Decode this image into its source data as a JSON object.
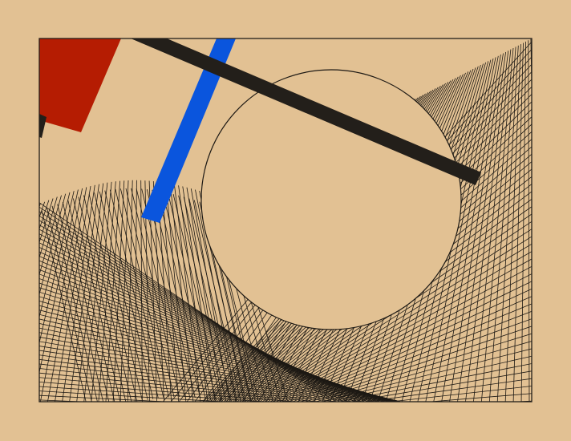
{
  "artwork": {
    "style": "constructivist geometric composition with string-art mesh",
    "colors": {
      "background": "#e2c193",
      "ink": "#231f1a",
      "red": "#b51c02",
      "blue": "#0a55dd",
      "line": "#1d1914"
    },
    "elements": [
      "frame",
      "mesh-left",
      "mesh-right",
      "circle",
      "red-quad",
      "blue-bar",
      "black-bar",
      "black-stub"
    ]
  }
}
